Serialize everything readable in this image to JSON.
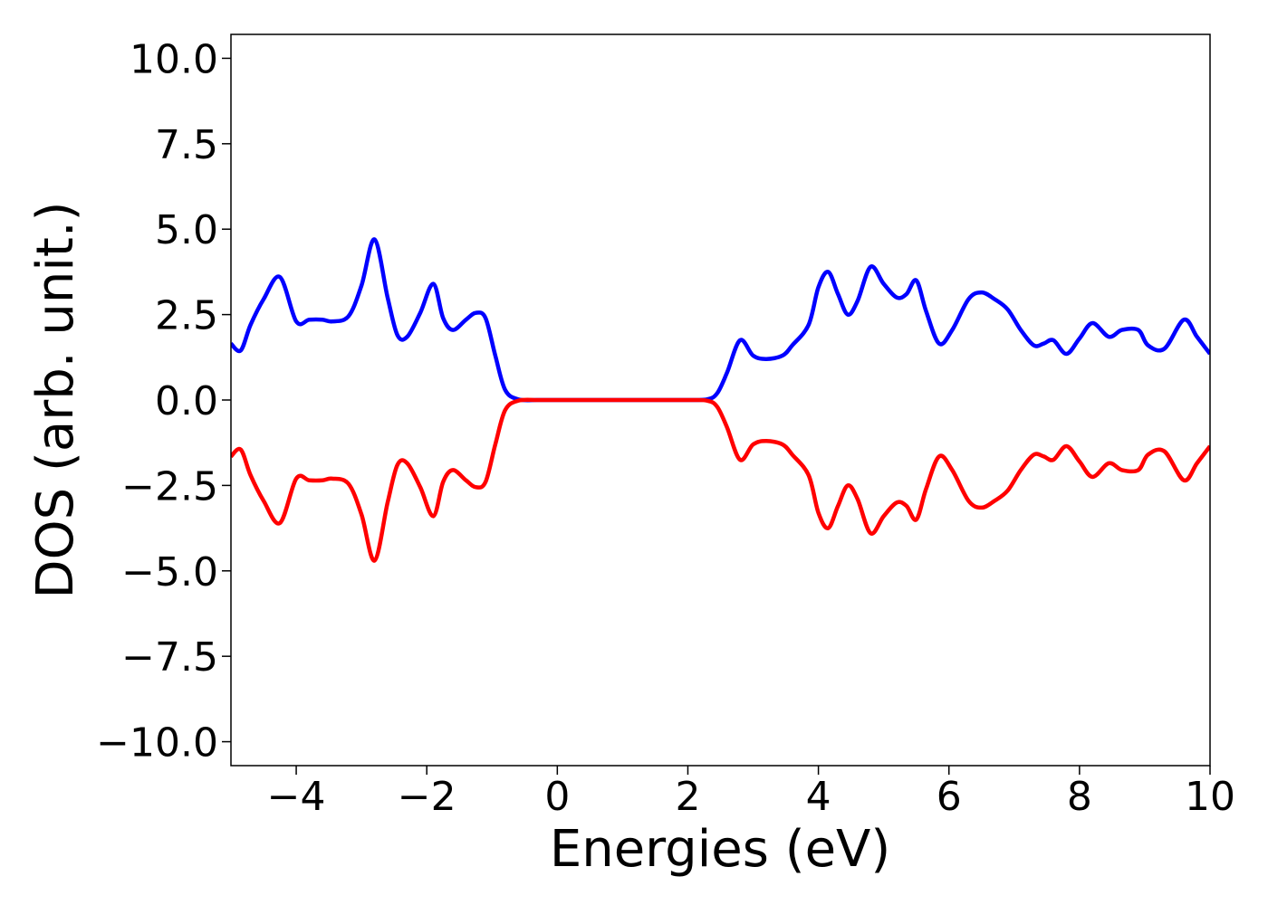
{
  "chart_data": {
    "type": "line",
    "xlabel": "Energies (eV)",
    "ylabel": "DOS (arb. unit.)",
    "xlim": [
      -5,
      10
    ],
    "ylim": [
      -10.7,
      10.7
    ],
    "xticks": [
      -4,
      -2,
      0,
      2,
      4,
      6,
      8,
      10
    ],
    "xtick_labels": [
      "−4",
      "−2",
      "0",
      "2",
      "4",
      "6",
      "8",
      "10"
    ],
    "yticks": [
      10.0,
      7.5,
      5.0,
      2.5,
      0.0,
      -2.5,
      -5.0,
      -7.5,
      -10.0
    ],
    "ytick_labels": [
      "10.0",
      "7.5",
      "5.0",
      "2.5",
      "0.0",
      "−2.5",
      "−5.0",
      "−7.5",
      "−10.0"
    ],
    "grid": false,
    "series": [
      {
        "color": "#0000ff",
        "x": [
          -5.0,
          -4.85,
          -4.7,
          -4.5,
          -4.25,
          -4.0,
          -3.8,
          -3.6,
          -3.45,
          -3.2,
          -3.0,
          -2.8,
          -2.6,
          -2.45,
          -2.3,
          -2.1,
          -1.9,
          -1.75,
          -1.6,
          -1.4,
          -1.25,
          -1.1,
          -0.95,
          -0.8,
          -0.6,
          -0.3,
          0.0,
          1.0,
          2.0,
          2.3,
          2.45,
          2.6,
          2.8,
          3.0,
          3.2,
          3.45,
          3.6,
          3.85,
          4.0,
          4.15,
          4.3,
          4.45,
          4.6,
          4.8,
          5.0,
          5.2,
          5.35,
          5.5,
          5.65,
          5.85,
          6.05,
          6.3,
          6.5,
          6.7,
          6.9,
          7.1,
          7.3,
          7.45,
          7.6,
          7.8,
          8.0,
          8.2,
          8.45,
          8.65,
          8.9,
          9.05,
          9.3,
          9.6,
          9.8,
          10.0
        ],
        "y": [
          1.65,
          1.45,
          2.2,
          2.95,
          3.6,
          2.3,
          2.35,
          2.35,
          2.3,
          2.45,
          3.35,
          4.7,
          3.0,
          1.9,
          1.85,
          2.55,
          3.4,
          2.4,
          2.05,
          2.35,
          2.55,
          2.4,
          1.3,
          0.3,
          0.02,
          0.0,
          0.0,
          0.0,
          0.0,
          0.02,
          0.2,
          0.8,
          1.75,
          1.3,
          1.2,
          1.3,
          1.6,
          2.2,
          3.3,
          3.75,
          3.1,
          2.5,
          2.9,
          3.9,
          3.4,
          3.0,
          3.1,
          3.5,
          2.6,
          1.65,
          2.05,
          2.95,
          3.15,
          2.95,
          2.65,
          2.05,
          1.6,
          1.65,
          1.75,
          1.35,
          1.8,
          2.25,
          1.85,
          2.05,
          2.05,
          1.6,
          1.5,
          2.35,
          1.85,
          1.35
        ]
      },
      {
        "color": "#ff0000",
        "x": [
          -5.0,
          -4.85,
          -4.7,
          -4.5,
          -4.25,
          -4.0,
          -3.8,
          -3.6,
          -3.45,
          -3.2,
          -3.0,
          -2.8,
          -2.6,
          -2.45,
          -2.3,
          -2.1,
          -1.9,
          -1.75,
          -1.6,
          -1.4,
          -1.25,
          -1.1,
          -0.95,
          -0.8,
          -0.6,
          -0.3,
          0.0,
          1.0,
          2.0,
          2.3,
          2.45,
          2.6,
          2.8,
          3.0,
          3.2,
          3.45,
          3.6,
          3.85,
          4.0,
          4.15,
          4.3,
          4.45,
          4.6,
          4.8,
          5.0,
          5.2,
          5.35,
          5.5,
          5.65,
          5.85,
          6.05,
          6.3,
          6.5,
          6.7,
          6.9,
          7.1,
          7.3,
          7.45,
          7.6,
          7.8,
          8.0,
          8.2,
          8.45,
          8.65,
          8.9,
          9.05,
          9.3,
          9.6,
          9.8,
          10.0
        ],
        "y": [
          -1.65,
          -1.45,
          -2.2,
          -2.95,
          -3.6,
          -2.3,
          -2.35,
          -2.35,
          -2.3,
          -2.45,
          -3.35,
          -4.7,
          -3.0,
          -1.9,
          -1.85,
          -2.55,
          -3.4,
          -2.4,
          -2.05,
          -2.35,
          -2.55,
          -2.4,
          -1.3,
          -0.3,
          -0.02,
          0.0,
          0.0,
          0.0,
          0.0,
          -0.02,
          -0.2,
          -0.8,
          -1.75,
          -1.3,
          -1.2,
          -1.3,
          -1.6,
          -2.2,
          -3.3,
          -3.75,
          -3.1,
          -2.5,
          -2.9,
          -3.9,
          -3.4,
          -3.0,
          -3.1,
          -3.5,
          -2.6,
          -1.65,
          -2.05,
          -2.95,
          -3.15,
          -2.95,
          -2.65,
          -2.05,
          -1.6,
          -1.65,
          -1.75,
          -1.35,
          -1.8,
          -2.25,
          -1.85,
          -2.05,
          -2.05,
          -1.6,
          -1.5,
          -2.35,
          -1.85,
          -1.35
        ]
      }
    ]
  }
}
